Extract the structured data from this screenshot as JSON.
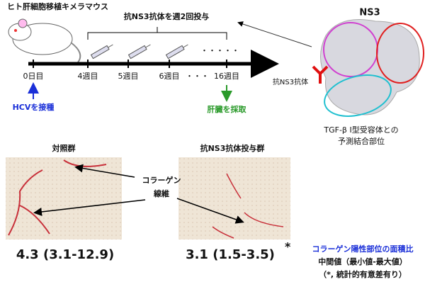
{
  "timeline": {
    "mouse_label": "ヒト肝細胞移植キメラマウス",
    "treatment": "抗NS3抗体を週2回投与",
    "dots_top": "・・・・・",
    "points": [
      "0日目",
      "4週目",
      "5週目",
      "6週目",
      "16週目"
    ],
    "dots_axis": "・・・",
    "infection": "HCVを接種",
    "harvest": "肝臓を採取"
  },
  "protein": {
    "title": "NS3",
    "antibody": "抗NS3抗体",
    "site_line1": "TGF-β I型受容体との",
    "site_line2": "予測結合部位"
  },
  "results": {
    "control": {
      "title": "対照群",
      "value": "4.3 (3.1-12.9)"
    },
    "treated": {
      "title": "抗NS3抗体投与群",
      "value": "3.1 (1.5-3.5)",
      "mark": "*"
    },
    "fiber_line1": "コラーゲン",
    "fiber_line2": "線維",
    "legend_title": "コラーゲン陽性部位の面積比",
    "legend_line2": "中間値（最小値-最大値）",
    "legend_line3": "（*, 統計的有意差有り）"
  }
}
